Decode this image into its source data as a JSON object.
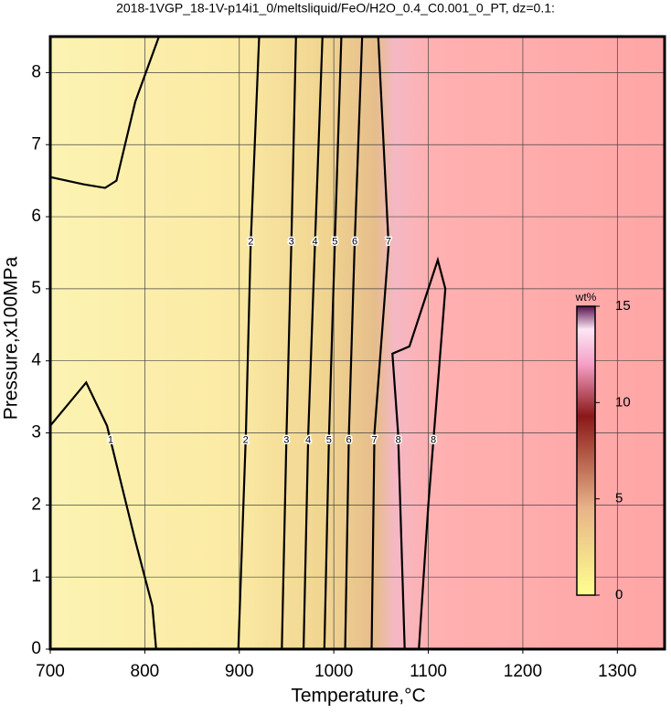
{
  "chart_data": {
    "type": "contour",
    "title": "2018-1VGP_18-1V-p14i1_0/meltsliquid/FeO/H2O_0.4_C0.001_0_PT, dz=0.1:",
    "xlabel": "Temperature,°C",
    "ylabel": "Pressure,x100MPa",
    "xlim": [
      700,
      1350
    ],
    "ylim": [
      0,
      8.5
    ],
    "xticks": [
      700,
      800,
      900,
      1000,
      1100,
      1200,
      1300
    ],
    "yticks": [
      0,
      1,
      2,
      3,
      4,
      5,
      6,
      7,
      8
    ],
    "grid": true,
    "contours": [
      {
        "level": 1,
        "x": [
          700,
          738,
          760,
          790,
          808,
          812
        ],
        "y": [
          3.1,
          3.7,
          3.1,
          1.5,
          0.6,
          0
        ]
      },
      {
        "level": 1,
        "x": [
          700,
          735,
          758,
          770,
          790,
          815
        ],
        "y": [
          6.55,
          6.45,
          6.4,
          6.5,
          7.6,
          8.5
        ]
      },
      {
        "level": 2,
        "x": [
          899,
          907,
          912,
          921
        ],
        "y": [
          0,
          3,
          5.6,
          8.5
        ]
      },
      {
        "level": 3,
        "x": [
          945,
          950,
          955,
          960
        ],
        "y": [
          0,
          3,
          5.6,
          8.5
        ]
      },
      {
        "level": 4,
        "x": [
          968,
          973,
          980,
          988
        ],
        "y": [
          0,
          3,
          5.6,
          8.5
        ]
      },
      {
        "level": 5,
        "x": [
          990,
          995,
          1001,
          1008
        ],
        "y": [
          0,
          3,
          5.6,
          8.5
        ]
      },
      {
        "level": 6,
        "x": [
          1012,
          1016,
          1022,
          1030
        ],
        "y": [
          0,
          3,
          5.6,
          8.5
        ]
      },
      {
        "level": 7,
        "x": [
          1040,
          1043,
          1058,
          1047
        ],
        "y": [
          0,
          3,
          5.6,
          8.5
        ]
      },
      {
        "level": 8,
        "x": [
          1075,
          1068,
          1062,
          1080,
          1095,
          1110,
          1118,
          1112,
          1100,
          1090
        ],
        "y": [
          0,
          3,
          4.1,
          4.2,
          4.8,
          5.4,
          5.0,
          4.0,
          2,
          0
        ]
      }
    ],
    "colorbar": {
      "label": "wt%",
      "clim": [
        0,
        15
      ],
      "ticks": [
        0,
        5,
        10,
        15
      ]
    }
  }
}
